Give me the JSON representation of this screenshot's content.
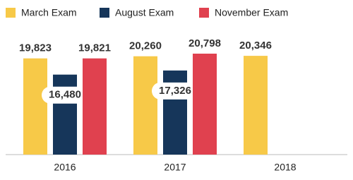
{
  "chart_data": {
    "type": "bar",
    "categories": [
      "2016",
      "2017",
      "2018"
    ],
    "series": [
      {
        "name": "March Exam",
        "color": "#f7c948",
        "values": [
          19823,
          20260,
          20346
        ],
        "value_labels": [
          "19,823",
          "20,260",
          "20,346"
        ]
      },
      {
        "name": "August Exam",
        "color": "#16365a",
        "values": [
          16480,
          17326,
          null
        ],
        "value_labels": [
          "16,480",
          "17,326",
          null
        ]
      },
      {
        "name": "November Exam",
        "color": "#e0414f",
        "values": [
          19821,
          20798,
          null
        ],
        "value_labels": [
          "19,821",
          "20,798",
          null
        ]
      }
    ]
  }
}
